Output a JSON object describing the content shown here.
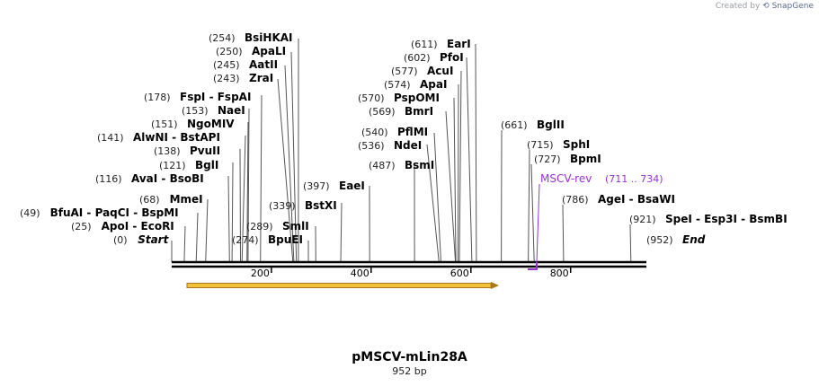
{
  "credit": {
    "prefix": "Created by",
    "brand": "SnapGene"
  },
  "plasmid": {
    "name": "pMSCV-mLin28A",
    "length_label": "952 bp",
    "length": 952
  },
  "ticks": [
    "200",
    "400",
    "600",
    "800"
  ],
  "labels": [
    {
      "id": "l0",
      "pos": "(0)",
      "text": "Start",
      "italic": true
    },
    {
      "id": "l1",
      "pos": "(25)",
      "text": "ApoI  - EcoRI"
    },
    {
      "id": "l2",
      "pos": "(49)",
      "text": "BfuAI  - PaqCI  - BspMI"
    },
    {
      "id": "l3",
      "pos": "(68)",
      "text": "MmeI"
    },
    {
      "id": "l4",
      "pos": "(116)",
      "text": "AvaI  - BsoBI"
    },
    {
      "id": "l5",
      "pos": "(121)",
      "text": "BglI"
    },
    {
      "id": "l6",
      "pos": "(138)",
      "text": "PvuII"
    },
    {
      "id": "l7",
      "pos": "(141)",
      "text": "AlwNI  - BstAPI"
    },
    {
      "id": "l8",
      "pos": "(151)",
      "text": "NgoMIV"
    },
    {
      "id": "l9",
      "pos": "(153)",
      "text": "NaeI"
    },
    {
      "id": "l10",
      "pos": "(178)",
      "text": "FspI  - FspAI"
    },
    {
      "id": "l11",
      "pos": "(243)",
      "text": "ZraI"
    },
    {
      "id": "l12",
      "pos": "(245)",
      "text": "AatII"
    },
    {
      "id": "l13",
      "pos": "(250)",
      "text": "ApaLI"
    },
    {
      "id": "l14",
      "pos": "(254)",
      "text": "BsiHKAI"
    },
    {
      "id": "l15",
      "pos": "(274)",
      "text": "BpuEI"
    },
    {
      "id": "l16",
      "pos": "(289)",
      "text": "SmlI"
    },
    {
      "id": "l17",
      "pos": "(339)",
      "text": "BstXI"
    },
    {
      "id": "l18",
      "pos": "(397)",
      "text": "EaeI"
    },
    {
      "id": "l19",
      "pos": "(487)",
      "text": "BsmI"
    },
    {
      "id": "l20",
      "pos": "(536)",
      "text": "NdeI"
    },
    {
      "id": "l21",
      "pos": "(540)",
      "text": "PflMI"
    },
    {
      "id": "l22",
      "pos": "(569)",
      "text": "BmrI"
    },
    {
      "id": "l23",
      "pos": "(570)",
      "text": "PspOMI"
    },
    {
      "id": "l24",
      "pos": "(574)",
      "text": "ApaI"
    },
    {
      "id": "l25",
      "pos": "(577)",
      "text": "AcuI"
    },
    {
      "id": "l26",
      "pos": "(602)",
      "text": "PfoI"
    },
    {
      "id": "l27",
      "pos": "(611)",
      "text": "EarI"
    },
    {
      "id": "l28",
      "pos": "(661)",
      "text": "BglII"
    },
    {
      "id": "l29",
      "pos": "(715)",
      "text": "SphI"
    },
    {
      "id": "l30",
      "pos": "(727)",
      "text": "BpmI"
    },
    {
      "id": "l31",
      "pos": "(786)",
      "text": "AgeI  - BsaWI"
    },
    {
      "id": "l32",
      "pos": "(921)",
      "text": "SpeI  - Esp3I  - BsmBI"
    },
    {
      "id": "l33",
      "pos": "(952)",
      "text": "End",
      "italic": true
    }
  ],
  "primer": {
    "name": "MSCV-rev",
    "range": "(711 .. 734)",
    "color": "#9b30d9"
  },
  "feature": {
    "color": "#f2c23a",
    "edge_color": "#a8781a"
  }
}
